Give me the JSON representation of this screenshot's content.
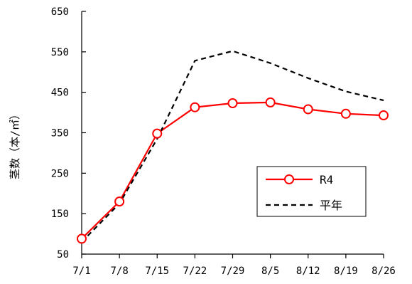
{
  "chart_data": {
    "type": "line",
    "ylabel": "茎数（本/㎡）",
    "ylim": [
      50,
      650
    ],
    "yticks": [
      50,
      150,
      250,
      350,
      450,
      550,
      650
    ],
    "categories": [
      "7/1",
      "7/8",
      "7/15",
      "7/22",
      "7/29",
      "8/5",
      "8/12",
      "8/19",
      "8/26"
    ],
    "series": [
      {
        "name": "R4",
        "values": [
          88,
          180,
          348,
          413,
          423,
          425,
          408,
          397,
          393
        ],
        "color": "#ff0000",
        "style": "solid",
        "marker": "circle"
      },
      {
        "name": "平年",
        "values": [
          80,
          175,
          335,
          528,
          552,
          522,
          485,
          452,
          430
        ],
        "color": "#000000",
        "style": "dashed",
        "marker": "none"
      }
    ],
    "legend": "center-right",
    "grid": false
  }
}
